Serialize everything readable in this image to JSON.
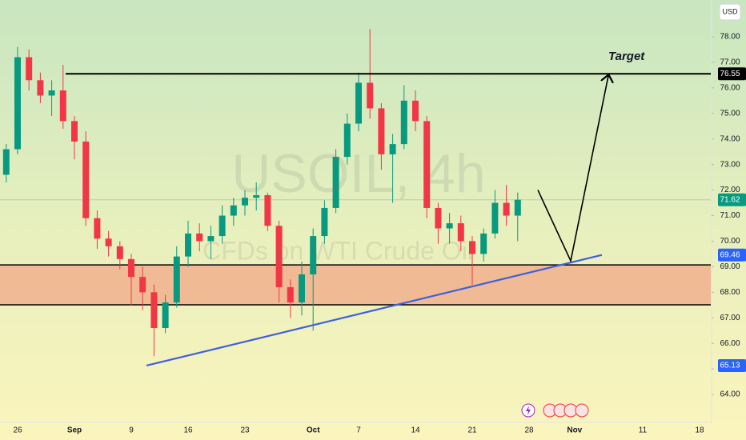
{
  "chart_data": {
    "type": "candlestick",
    "symbol_box": "USD",
    "watermark": {
      "title": "USOIL, 4h",
      "subtitle": "CFDs on WTI Crude Oil"
    },
    "categories": [
      null,
      "26",
      null,
      null,
      null,
      null,
      "Sep",
      null,
      null,
      null,
      null,
      "9",
      null,
      null,
      null,
      null,
      "16",
      null,
      null,
      null,
      null,
      "23",
      null,
      null,
      null,
      null,
      null,
      "Oct",
      null,
      null,
      null,
      "7",
      null,
      null,
      null,
      null,
      "14",
      null,
      null,
      null,
      null,
      "21",
      null,
      null,
      null,
      null,
      "28",
      null,
      null,
      null,
      "Nov",
      null,
      null,
      null,
      null,
      null,
      "11",
      null,
      null,
      null,
      null,
      "18"
    ],
    "open": [
      72.6,
      73.6,
      77.2,
      76.3,
      75.7,
      75.9,
      74.7,
      73.9,
      70.9,
      70.1,
      69.8,
      69.3,
      68.6,
      68.0,
      66.6,
      67.6,
      69.4,
      70.3,
      70.0,
      70.2,
      71.0,
      71.4,
      71.7,
      71.8,
      70.6,
      68.2,
      67.6,
      68.7,
      70.2,
      71.3,
      73.3,
      74.6,
      76.2,
      75.2,
      73.4,
      73.8,
      75.5,
      74.7,
      71.3,
      70.5,
      70.7,
      70.0,
      69.5,
      70.3,
      71.5,
      71.0,
      null,
      null,
      null,
      null,
      null,
      null,
      null,
      null,
      null,
      null,
      null,
      null,
      null,
      null,
      null,
      null
    ],
    "high": [
      73.8,
      77.6,
      77.5,
      76.6,
      76.3,
      76.9,
      74.9,
      74.3,
      71.2,
      70.4,
      70.0,
      69.5,
      69.0,
      68.3,
      67.9,
      69.8,
      70.8,
      70.7,
      70.6,
      71.4,
      71.7,
      72.0,
      72.3,
      71.9,
      70.8,
      68.5,
      69.2,
      70.5,
      71.6,
      73.6,
      75.0,
      76.6,
      78.3,
      75.4,
      74.2,
      76.1,
      75.9,
      74.9,
      71.5,
      71.1,
      71.0,
      70.2,
      70.5,
      72.0,
      72.2,
      71.9,
      null,
      null,
      null,
      null,
      null,
      null,
      null,
      null,
      null,
      null,
      null,
      null,
      null,
      null,
      null,
      null
    ],
    "low": [
      72.3,
      73.4,
      75.9,
      75.4,
      74.9,
      74.4,
      73.2,
      70.6,
      69.7,
      69.4,
      68.9,
      67.5,
      67.3,
      65.5,
      66.4,
      67.4,
      69.0,
      69.6,
      69.3,
      69.9,
      70.6,
      71.0,
      71.2,
      70.4,
      67.6,
      67.0,
      67.1,
      66.5,
      69.9,
      71.1,
      73.0,
      74.3,
      74.8,
      72.8,
      71.5,
      73.6,
      74.3,
      70.9,
      69.9,
      69.9,
      69.6,
      68.3,
      69.2,
      70.1,
      70.6,
      70.0,
      null,
      null,
      null,
      null,
      null,
      null,
      null,
      null,
      null,
      null,
      null,
      null,
      null,
      null,
      null,
      null
    ],
    "close": [
      73.6,
      77.2,
      76.3,
      75.7,
      75.9,
      74.7,
      73.9,
      70.9,
      70.1,
      69.8,
      69.3,
      68.6,
      68.0,
      66.6,
      67.6,
      69.4,
      70.3,
      70.0,
      70.2,
      71.0,
      71.4,
      71.7,
      71.8,
      70.6,
      68.2,
      67.6,
      68.7,
      70.2,
      71.3,
      73.3,
      74.6,
      76.2,
      75.2,
      73.4,
      73.8,
      75.5,
      74.7,
      71.3,
      70.5,
      70.7,
      70.0,
      69.5,
      70.3,
      71.5,
      71.0,
      71.62,
      null,
      null,
      null,
      null,
      null,
      null,
      null,
      null,
      null,
      null,
      null,
      null,
      null,
      null,
      null,
      null
    ],
    "up_color": "#089981",
    "down_color": "#f23645",
    "ylim": [
      63.0,
      79.44
    ],
    "yticks": [
      {
        "value": 64,
        "label": "64.00"
      },
      {
        "value": 65,
        "label": "65.00"
      },
      {
        "value": 66,
        "label": "66.00"
      },
      {
        "value": 67,
        "label": "67.00"
      },
      {
        "value": 68,
        "label": "68.00"
      },
      {
        "value": 69,
        "label": "69.00"
      },
      {
        "value": 70,
        "label": "70.00"
      },
      {
        "value": 71,
        "label": "71.00"
      },
      {
        "value": 72,
        "label": "72.00"
      },
      {
        "value": 73,
        "label": "73.00"
      },
      {
        "value": 74,
        "label": "74.00"
      },
      {
        "value": 75,
        "label": "75.00"
      },
      {
        "value": 76,
        "label": "76.00"
      },
      {
        "value": 77,
        "label": "77.00"
      },
      {
        "value": 78,
        "label": "78.00"
      }
    ],
    "resistance": 76.55,
    "last_price": 71.62,
    "zone": [
      67.51,
      69.07
    ],
    "trendline": [
      65.13,
      69.46
    ],
    "projection": [
      72.0,
      69.23,
      76.47
    ],
    "target_label": "Target"
  }
}
